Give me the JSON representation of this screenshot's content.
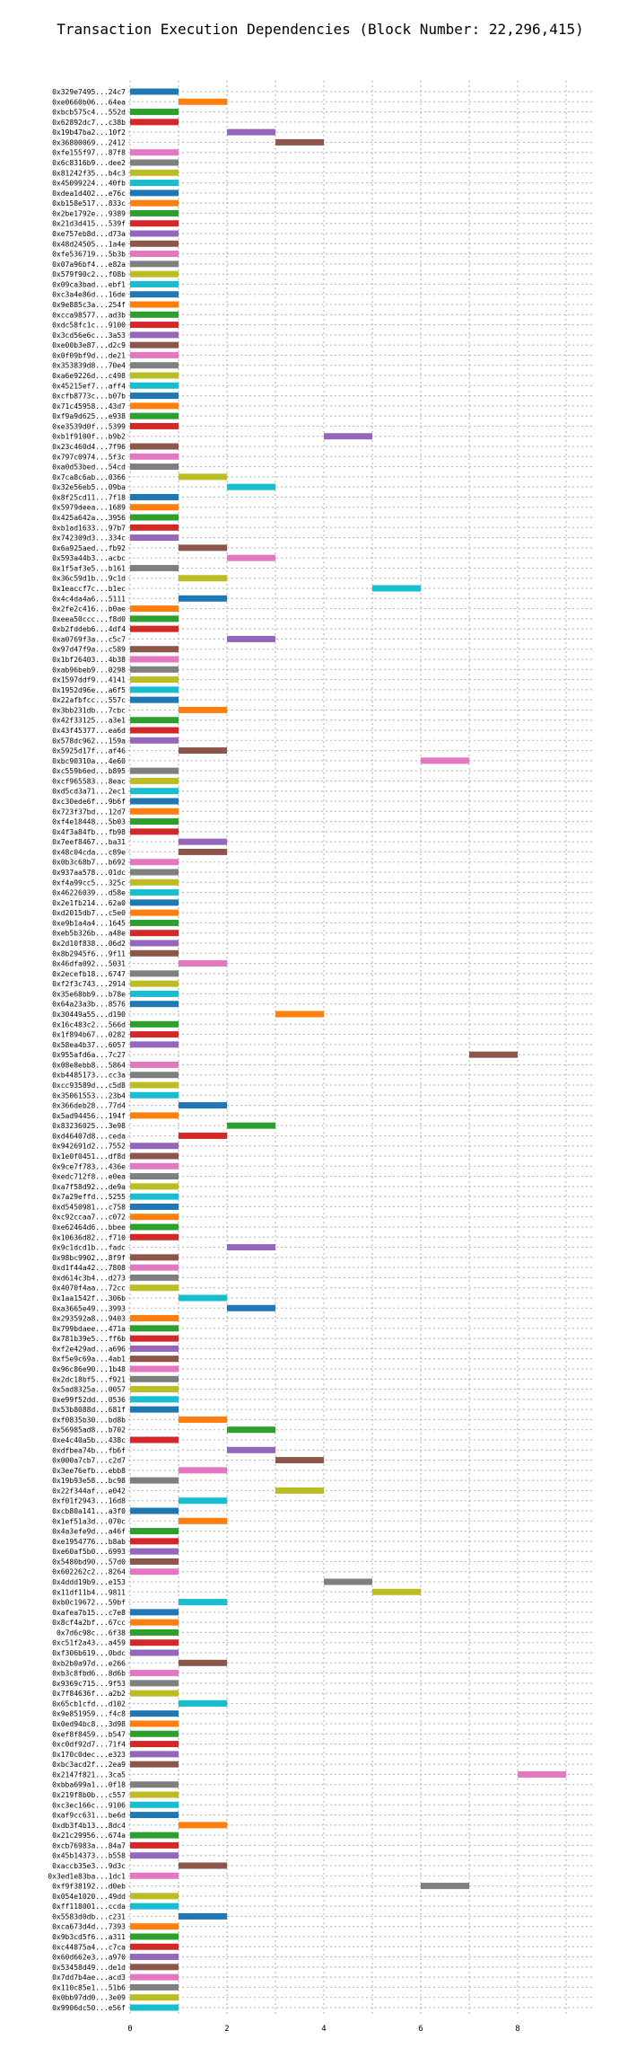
{
  "chart_data": {
    "type": "bar",
    "orientation": "horizontal-gantt",
    "title": "Transaction Execution Dependencies (Block Number: 22,296,415)",
    "xlabel": "",
    "ylabel": "",
    "xlim": [
      0,
      9
    ],
    "xticks": [
      0,
      2,
      4,
      6,
      8
    ],
    "grid": true,
    "colors": {
      "blue": "#1f77b4",
      "orange": "#ff7f0e",
      "green": "#2ca02c",
      "red": "#d62728",
      "purple": "#9467bd",
      "brown": "#8c564b",
      "pink": "#e377c2",
      "gray": "#7f7f7f",
      "olive": "#bcbd22",
      "cyan": "#17becf"
    },
    "transactions": [
      {
        "label": "0x329e7495...24c7",
        "start": 0,
        "color": "blue"
      },
      {
        "label": "0xe0660b06...64ea",
        "start": 1,
        "color": "orange"
      },
      {
        "label": "0xbcb575c4...552d",
        "start": 0,
        "color": "green"
      },
      {
        "label": "0x62892dc7...c38b",
        "start": 0,
        "color": "red"
      },
      {
        "label": "0x19b47ba2...10f2",
        "start": 2,
        "color": "purple"
      },
      {
        "label": "0x36800069...2412",
        "start": 3,
        "color": "brown"
      },
      {
        "label": "0xfe155f97...87f8",
        "start": 0,
        "color": "pink"
      },
      {
        "label": "0x6c8316b9...dee2",
        "start": 0,
        "color": "gray"
      },
      {
        "label": "0x81242f35...b4c3",
        "start": 0,
        "color": "olive"
      },
      {
        "label": "0x45099224...40fb",
        "start": 0,
        "color": "cyan"
      },
      {
        "label": "0xdea1d402...e76c",
        "start": 0,
        "color": "blue"
      },
      {
        "label": "0xb158e517...833c",
        "start": 0,
        "color": "orange"
      },
      {
        "label": "0x2be1792e...9389",
        "start": 0,
        "color": "green"
      },
      {
        "label": "0x21d3d415...539f",
        "start": 0,
        "color": "red"
      },
      {
        "label": "0xe757eb8d...d73a",
        "start": 0,
        "color": "purple"
      },
      {
        "label": "0x48d24505...1a4e",
        "start": 0,
        "color": "brown"
      },
      {
        "label": "0xfe536719...5b3b",
        "start": 0,
        "color": "pink"
      },
      {
        "label": "0x07a96bf4...e82a",
        "start": 0,
        "color": "gray"
      },
      {
        "label": "0x579f90c2...f08b",
        "start": 0,
        "color": "olive"
      },
      {
        "label": "0x09ca3bad...ebf1",
        "start": 0,
        "color": "cyan"
      },
      {
        "label": "0xc3a4e86d...16de",
        "start": 0,
        "color": "blue"
      },
      {
        "label": "0x9e885c3a...254f",
        "start": 0,
        "color": "orange"
      },
      {
        "label": "0xcca98577...ad3b",
        "start": 0,
        "color": "green"
      },
      {
        "label": "0xdc58fc1c...9100",
        "start": 0,
        "color": "red"
      },
      {
        "label": "0x3cd56e6c...3a53",
        "start": 0,
        "color": "purple"
      },
      {
        "label": "0xe00b3e87...d2c9",
        "start": 0,
        "color": "brown"
      },
      {
        "label": "0x0f09bf9d...de21",
        "start": 0,
        "color": "pink"
      },
      {
        "label": "0x353839d8...70e4",
        "start": 0,
        "color": "gray"
      },
      {
        "label": "0xa6e9226d...c498",
        "start": 0,
        "color": "olive"
      },
      {
        "label": "0x45215ef7...aff4",
        "start": 0,
        "color": "cyan"
      },
      {
        "label": "0xcfb8773c...b07b",
        "start": 0,
        "color": "blue"
      },
      {
        "label": "0x71c45958...43d7",
        "start": 0,
        "color": "orange"
      },
      {
        "label": "0xf9a9d625...e938",
        "start": 0,
        "color": "green"
      },
      {
        "label": "0xe3539d0f...5399",
        "start": 0,
        "color": "red"
      },
      {
        "label": "0xb1f9100f...b9b2",
        "start": 4,
        "color": "purple"
      },
      {
        "label": "0x23c460d4...7f96",
        "start": 0,
        "color": "brown"
      },
      {
        "label": "0x797c0974...5f3c",
        "start": 0,
        "color": "pink"
      },
      {
        "label": "0xa0d53bed...54cd",
        "start": 0,
        "color": "gray"
      },
      {
        "label": "0x7ca8c6ab...0366",
        "start": 1,
        "color": "olive"
      },
      {
        "label": "0x32e56eb5...09ba",
        "start": 2,
        "color": "cyan"
      },
      {
        "label": "0x8f25cd11...7f18",
        "start": 0,
        "color": "blue"
      },
      {
        "label": "0x5979deea...1689",
        "start": 0,
        "color": "orange"
      },
      {
        "label": "0x425a642a...3956",
        "start": 0,
        "color": "green"
      },
      {
        "label": "0xb1ad1633...97b7",
        "start": 0,
        "color": "red"
      },
      {
        "label": "0x742309d3...334c",
        "start": 0,
        "color": "purple"
      },
      {
        "label": "0x6a925aed...fb92",
        "start": 1,
        "color": "brown"
      },
      {
        "label": "0x593a44b3...acbc",
        "start": 2,
        "color": "pink"
      },
      {
        "label": "0x1f5af3e5...b161",
        "start": 0,
        "color": "gray"
      },
      {
        "label": "0x36c59d1b...9c1d",
        "start": 1,
        "color": "olive"
      },
      {
        "label": "0x1eaccf7c...b1ec",
        "start": 5,
        "color": "cyan"
      },
      {
        "label": "0x4c4da4a6...5111",
        "start": 1,
        "color": "blue"
      },
      {
        "label": "0x2fe2c416...b0ae",
        "start": 0,
        "color": "orange"
      },
      {
        "label": "0xeea50ccc...f8d0",
        "start": 0,
        "color": "green"
      },
      {
        "label": "0xb2fddeb6...4df4",
        "start": 0,
        "color": "red"
      },
      {
        "label": "0xa0769f3a...c5c7",
        "start": 2,
        "color": "purple"
      },
      {
        "label": "0x97d47f9a...c589",
        "start": 0,
        "color": "brown"
      },
      {
        "label": "0x1bf26403...4b38",
        "start": 0,
        "color": "pink"
      },
      {
        "label": "0xab96beb9...0298",
        "start": 0,
        "color": "gray"
      },
      {
        "label": "0x1597ddf9...4141",
        "start": 0,
        "color": "olive"
      },
      {
        "label": "0x1952d96e...a6f5",
        "start": 0,
        "color": "cyan"
      },
      {
        "label": "0x22afbfcc...557c",
        "start": 0,
        "color": "blue"
      },
      {
        "label": "0x3bb231db...7cbc",
        "start": 1,
        "color": "orange"
      },
      {
        "label": "0x42f33125...a3e1",
        "start": 0,
        "color": "green"
      },
      {
        "label": "0x43f45377...ea6d",
        "start": 0,
        "color": "red"
      },
      {
        "label": "0x578dc962...159a",
        "start": 0,
        "color": "purple"
      },
      {
        "label": "0x5925d17f...af46",
        "start": 1,
        "color": "brown"
      },
      {
        "label": "0xbc90310a...4e60",
        "start": 6,
        "color": "pink"
      },
      {
        "label": "0xc559b6ed...b895",
        "start": 0,
        "color": "gray"
      },
      {
        "label": "0xcf965583...8eac",
        "start": 0,
        "color": "olive"
      },
      {
        "label": "0xd5cd3a71...2ec1",
        "start": 0,
        "color": "cyan"
      },
      {
        "label": "0xc30ede6f...9b6f",
        "start": 0,
        "color": "blue"
      },
      {
        "label": "0x723f37bd...12d7",
        "start": 0,
        "color": "orange"
      },
      {
        "label": "0xf4e18448...5b03",
        "start": 0,
        "color": "green"
      },
      {
        "label": "0x4f3a84fb...fb98",
        "start": 0,
        "color": "red"
      },
      {
        "label": "0x7eef8467...ba31",
        "start": 1,
        "color": "purple"
      },
      {
        "label": "0x48c04cda...c89e",
        "start": 1,
        "color": "brown"
      },
      {
        "label": "0x0b3c68b7...b692",
        "start": 0,
        "color": "pink"
      },
      {
        "label": "0x937aa578...01dc",
        "start": 0,
        "color": "gray"
      },
      {
        "label": "0xf4a99cc5...325c",
        "start": 0,
        "color": "olive"
      },
      {
        "label": "0x46226039...d58e",
        "start": 0,
        "color": "cyan"
      },
      {
        "label": "0x2e1fb214...62a0",
        "start": 0,
        "color": "blue"
      },
      {
        "label": "0xd2015db7...c5e0",
        "start": 0,
        "color": "orange"
      },
      {
        "label": "0xe9b1a4a4...1645",
        "start": 0,
        "color": "green"
      },
      {
        "label": "0xeb5b326b...a48e",
        "start": 0,
        "color": "red"
      },
      {
        "label": "0x2d10f838...06d2",
        "start": 0,
        "color": "purple"
      },
      {
        "label": "0x8b2945f6...9f11",
        "start": 0,
        "color": "brown"
      },
      {
        "label": "0x46dfa092...5031",
        "start": 1,
        "color": "pink"
      },
      {
        "label": "0x2ecefb18...6747",
        "start": 0,
        "color": "gray"
      },
      {
        "label": "0xf2f3c743...2914",
        "start": 0,
        "color": "olive"
      },
      {
        "label": "0x35e68bb9...b78e",
        "start": 0,
        "color": "cyan"
      },
      {
        "label": "0x64a23a3b...8576",
        "start": 0,
        "color": "blue"
      },
      {
        "label": "0x30449a55...d190",
        "start": 3,
        "color": "orange"
      },
      {
        "label": "0x16c483c2...566d",
        "start": 0,
        "color": "green"
      },
      {
        "label": "0x1f894b67...0282",
        "start": 0,
        "color": "red"
      },
      {
        "label": "0x58ea4b37...6057",
        "start": 0,
        "color": "purple"
      },
      {
        "label": "0x955afd6a...7c27",
        "start": 7,
        "color": "brown"
      },
      {
        "label": "0x08e8ebb8...5864",
        "start": 0,
        "color": "pink"
      },
      {
        "label": "0xb4485173...cc3a",
        "start": 0,
        "color": "gray"
      },
      {
        "label": "0xcc93589d...c5d8",
        "start": 0,
        "color": "olive"
      },
      {
        "label": "0x35061553...23b4",
        "start": 0,
        "color": "cyan"
      },
      {
        "label": "0x366deb28...77d4",
        "start": 1,
        "color": "blue"
      },
      {
        "label": "0x5ad94456...194f",
        "start": 0,
        "color": "orange"
      },
      {
        "label": "0x83236025...3e98",
        "start": 2,
        "color": "green"
      },
      {
        "label": "0xd46407d8...ceda",
        "start": 1,
        "color": "red"
      },
      {
        "label": "0x942691d2...7552",
        "start": 0,
        "color": "purple"
      },
      {
        "label": "0x1e0f0451...df8d",
        "start": 0,
        "color": "brown"
      },
      {
        "label": "0x9ce7f783...436e",
        "start": 0,
        "color": "pink"
      },
      {
        "label": "0xedc712f8...e0ea",
        "start": 0,
        "color": "gray"
      },
      {
        "label": "0xa7f58d92...de9a",
        "start": 0,
        "color": "olive"
      },
      {
        "label": "0x7a29effd...5255",
        "start": 0,
        "color": "cyan"
      },
      {
        "label": "0xd5450981...c758",
        "start": 0,
        "color": "blue"
      },
      {
        "label": "0xc92ccaa7...c072",
        "start": 0,
        "color": "orange"
      },
      {
        "label": "0xe62464d6...bbee",
        "start": 0,
        "color": "green"
      },
      {
        "label": "0x10636d82...f710",
        "start": 0,
        "color": "red"
      },
      {
        "label": "0x9c1dcd1b...fadc",
        "start": 2,
        "color": "purple"
      },
      {
        "label": "0x98bc9902...8f9f",
        "start": 0,
        "color": "brown"
      },
      {
        "label": "0xd1f44a42...7808",
        "start": 0,
        "color": "pink"
      },
      {
        "label": "0xd614c3b4...d273",
        "start": 0,
        "color": "gray"
      },
      {
        "label": "0x4070f4aa...72cc",
        "start": 0,
        "color": "olive"
      },
      {
        "label": "0x1aa1542f...306b",
        "start": 1,
        "color": "cyan"
      },
      {
        "label": "0xa3665e49...3993",
        "start": 2,
        "color": "blue"
      },
      {
        "label": "0x293592a8...9403",
        "start": 0,
        "color": "orange"
      },
      {
        "label": "0x799bdaee...471a",
        "start": 0,
        "color": "green"
      },
      {
        "label": "0x781b39e5...ff6b",
        "start": 0,
        "color": "red"
      },
      {
        "label": "0xf2e429ad...a696",
        "start": 0,
        "color": "purple"
      },
      {
        "label": "0xf5e9c69a...4ab1",
        "start": 0,
        "color": "brown"
      },
      {
        "label": "0x96c86e90...1b48",
        "start": 0,
        "color": "pink"
      },
      {
        "label": "0x2dc18bf5...f921",
        "start": 0,
        "color": "gray"
      },
      {
        "label": "0x5ad8325a...0057",
        "start": 0,
        "color": "olive"
      },
      {
        "label": "0xe99f52dd...0536",
        "start": 0,
        "color": "cyan"
      },
      {
        "label": "0x53b8088d...681f",
        "start": 0,
        "color": "blue"
      },
      {
        "label": "0xf0835b30...bd8b",
        "start": 1,
        "color": "orange"
      },
      {
        "label": "0x56985ad8...b702",
        "start": 2,
        "color": "green"
      },
      {
        "label": "0xe4c40a5b...438c",
        "start": 0,
        "color": "red"
      },
      {
        "label": "0xdfbea74b...fb6f",
        "start": 2,
        "color": "purple"
      },
      {
        "label": "0x000a7cb7...c2d7",
        "start": 3,
        "color": "brown"
      },
      {
        "label": "0x3ee76efb...ebb8",
        "start": 1,
        "color": "pink"
      },
      {
        "label": "0x19b93e58...bc98",
        "start": 0,
        "color": "gray"
      },
      {
        "label": "0x22f344af...e042",
        "start": 3,
        "color": "olive"
      },
      {
        "label": "0xf01f2943...16d8",
        "start": 1,
        "color": "cyan"
      },
      {
        "label": "0xcb80a141...a3f0",
        "start": 0,
        "color": "blue"
      },
      {
        "label": "0x1ef51a3d...070c",
        "start": 1,
        "color": "orange"
      },
      {
        "label": "0x4a3efe9d...a46f",
        "start": 0,
        "color": "green"
      },
      {
        "label": "0xe1954776...b8ab",
        "start": 0,
        "color": "red"
      },
      {
        "label": "0xe60af5b0...6993",
        "start": 0,
        "color": "purple"
      },
      {
        "label": "0x5480bd90...57d0",
        "start": 0,
        "color": "brown"
      },
      {
        "label": "0x602262c2...8264",
        "start": 0,
        "color": "pink"
      },
      {
        "label": "0x4ddd19b9...e153",
        "start": 4,
        "color": "gray"
      },
      {
        "label": "0x11df11b4...9811",
        "start": 5,
        "color": "olive"
      },
      {
        "label": "0xb0c19672...59bf",
        "start": 1,
        "color": "cyan"
      },
      {
        "label": "0xafea7b15...c7e8",
        "start": 0,
        "color": "blue"
      },
      {
        "label": "0x8cf4a2bf...67cc",
        "start": 0,
        "color": "orange"
      },
      {
        "label": "0x7d6c98c...6f38",
        "start": 0,
        "color": "green"
      },
      {
        "label": "0xc51f2a43...a459",
        "start": 0,
        "color": "red"
      },
      {
        "label": "0xf306b619...0bdc",
        "start": 0,
        "color": "purple"
      },
      {
        "label": "0xb2b0a97d...e266",
        "start": 1,
        "color": "brown"
      },
      {
        "label": "0xb3c8fbd6...8d6b",
        "start": 0,
        "color": "pink"
      },
      {
        "label": "0x9369c715...9f53",
        "start": 0,
        "color": "gray"
      },
      {
        "label": "0x7f84636f...a2b2",
        "start": 0,
        "color": "olive"
      },
      {
        "label": "0x65cb1cfd...d102",
        "start": 1,
        "color": "cyan"
      },
      {
        "label": "0x9e851959...f4c8",
        "start": 0,
        "color": "blue"
      },
      {
        "label": "0x0ed94bc8...3d98",
        "start": 0,
        "color": "orange"
      },
      {
        "label": "0xef8f8459...b547",
        "start": 0,
        "color": "green"
      },
      {
        "label": "0xc0df92d7...71f4",
        "start": 0,
        "color": "red"
      },
      {
        "label": "0x170c0dec...e323",
        "start": 0,
        "color": "purple"
      },
      {
        "label": "0xbc3acd2f...2ea9",
        "start": 0,
        "color": "brown"
      },
      {
        "label": "0x2147f821...3ca5",
        "start": 8,
        "color": "pink"
      },
      {
        "label": "0xbba699a1...0f18",
        "start": 0,
        "color": "gray"
      },
      {
        "label": "0x219f8b0b...c557",
        "start": 0,
        "color": "olive"
      },
      {
        "label": "0xc3ec166c...9106",
        "start": 0,
        "color": "cyan"
      },
      {
        "label": "0xaf9cc631...be6d",
        "start": 0,
        "color": "blue"
      },
      {
        "label": "0xdb3f4b13...8dc4",
        "start": 1,
        "color": "orange"
      },
      {
        "label": "0x21c29956...674a",
        "start": 0,
        "color": "green"
      },
      {
        "label": "0xcb76983a...84a7",
        "start": 0,
        "color": "red"
      },
      {
        "label": "0x45b14373...b558",
        "start": 0,
        "color": "purple"
      },
      {
        "label": "0xaccb35e3...9d3c",
        "start": 1,
        "color": "brown"
      },
      {
        "label": "0x3ed1e83ba...1dc1",
        "start": 0,
        "color": "pink"
      },
      {
        "label": "0xf9f38192...d0eb",
        "start": 6,
        "color": "gray"
      },
      {
        "label": "0x054e1020...49dd",
        "start": 0,
        "color": "olive"
      },
      {
        "label": "0xff118001...ccda",
        "start": 0,
        "color": "cyan"
      },
      {
        "label": "0x5583d0db...c231",
        "start": 1,
        "color": "blue"
      },
      {
        "label": "0xca673d4d...7393",
        "start": 0,
        "color": "orange"
      },
      {
        "label": "0x9b3cd5f6...a311",
        "start": 0,
        "color": "green"
      },
      {
        "label": "0xc44875a4...c7ca",
        "start": 0,
        "color": "red"
      },
      {
        "label": "0x60d662e3...a970",
        "start": 0,
        "color": "purple"
      },
      {
        "label": "0x53458d49...de1d",
        "start": 0,
        "color": "brown"
      },
      {
        "label": "0x7dd7b4ae...acd3",
        "start": 0,
        "color": "pink"
      },
      {
        "label": "0x110c85e1...51b6",
        "start": 0,
        "color": "gray"
      },
      {
        "label": "0x0bb97dd0...3e09",
        "start": 0,
        "color": "olive"
      },
      {
        "label": "0x9906dc50...e56f",
        "start": 0,
        "color": "cyan"
      }
    ]
  }
}
